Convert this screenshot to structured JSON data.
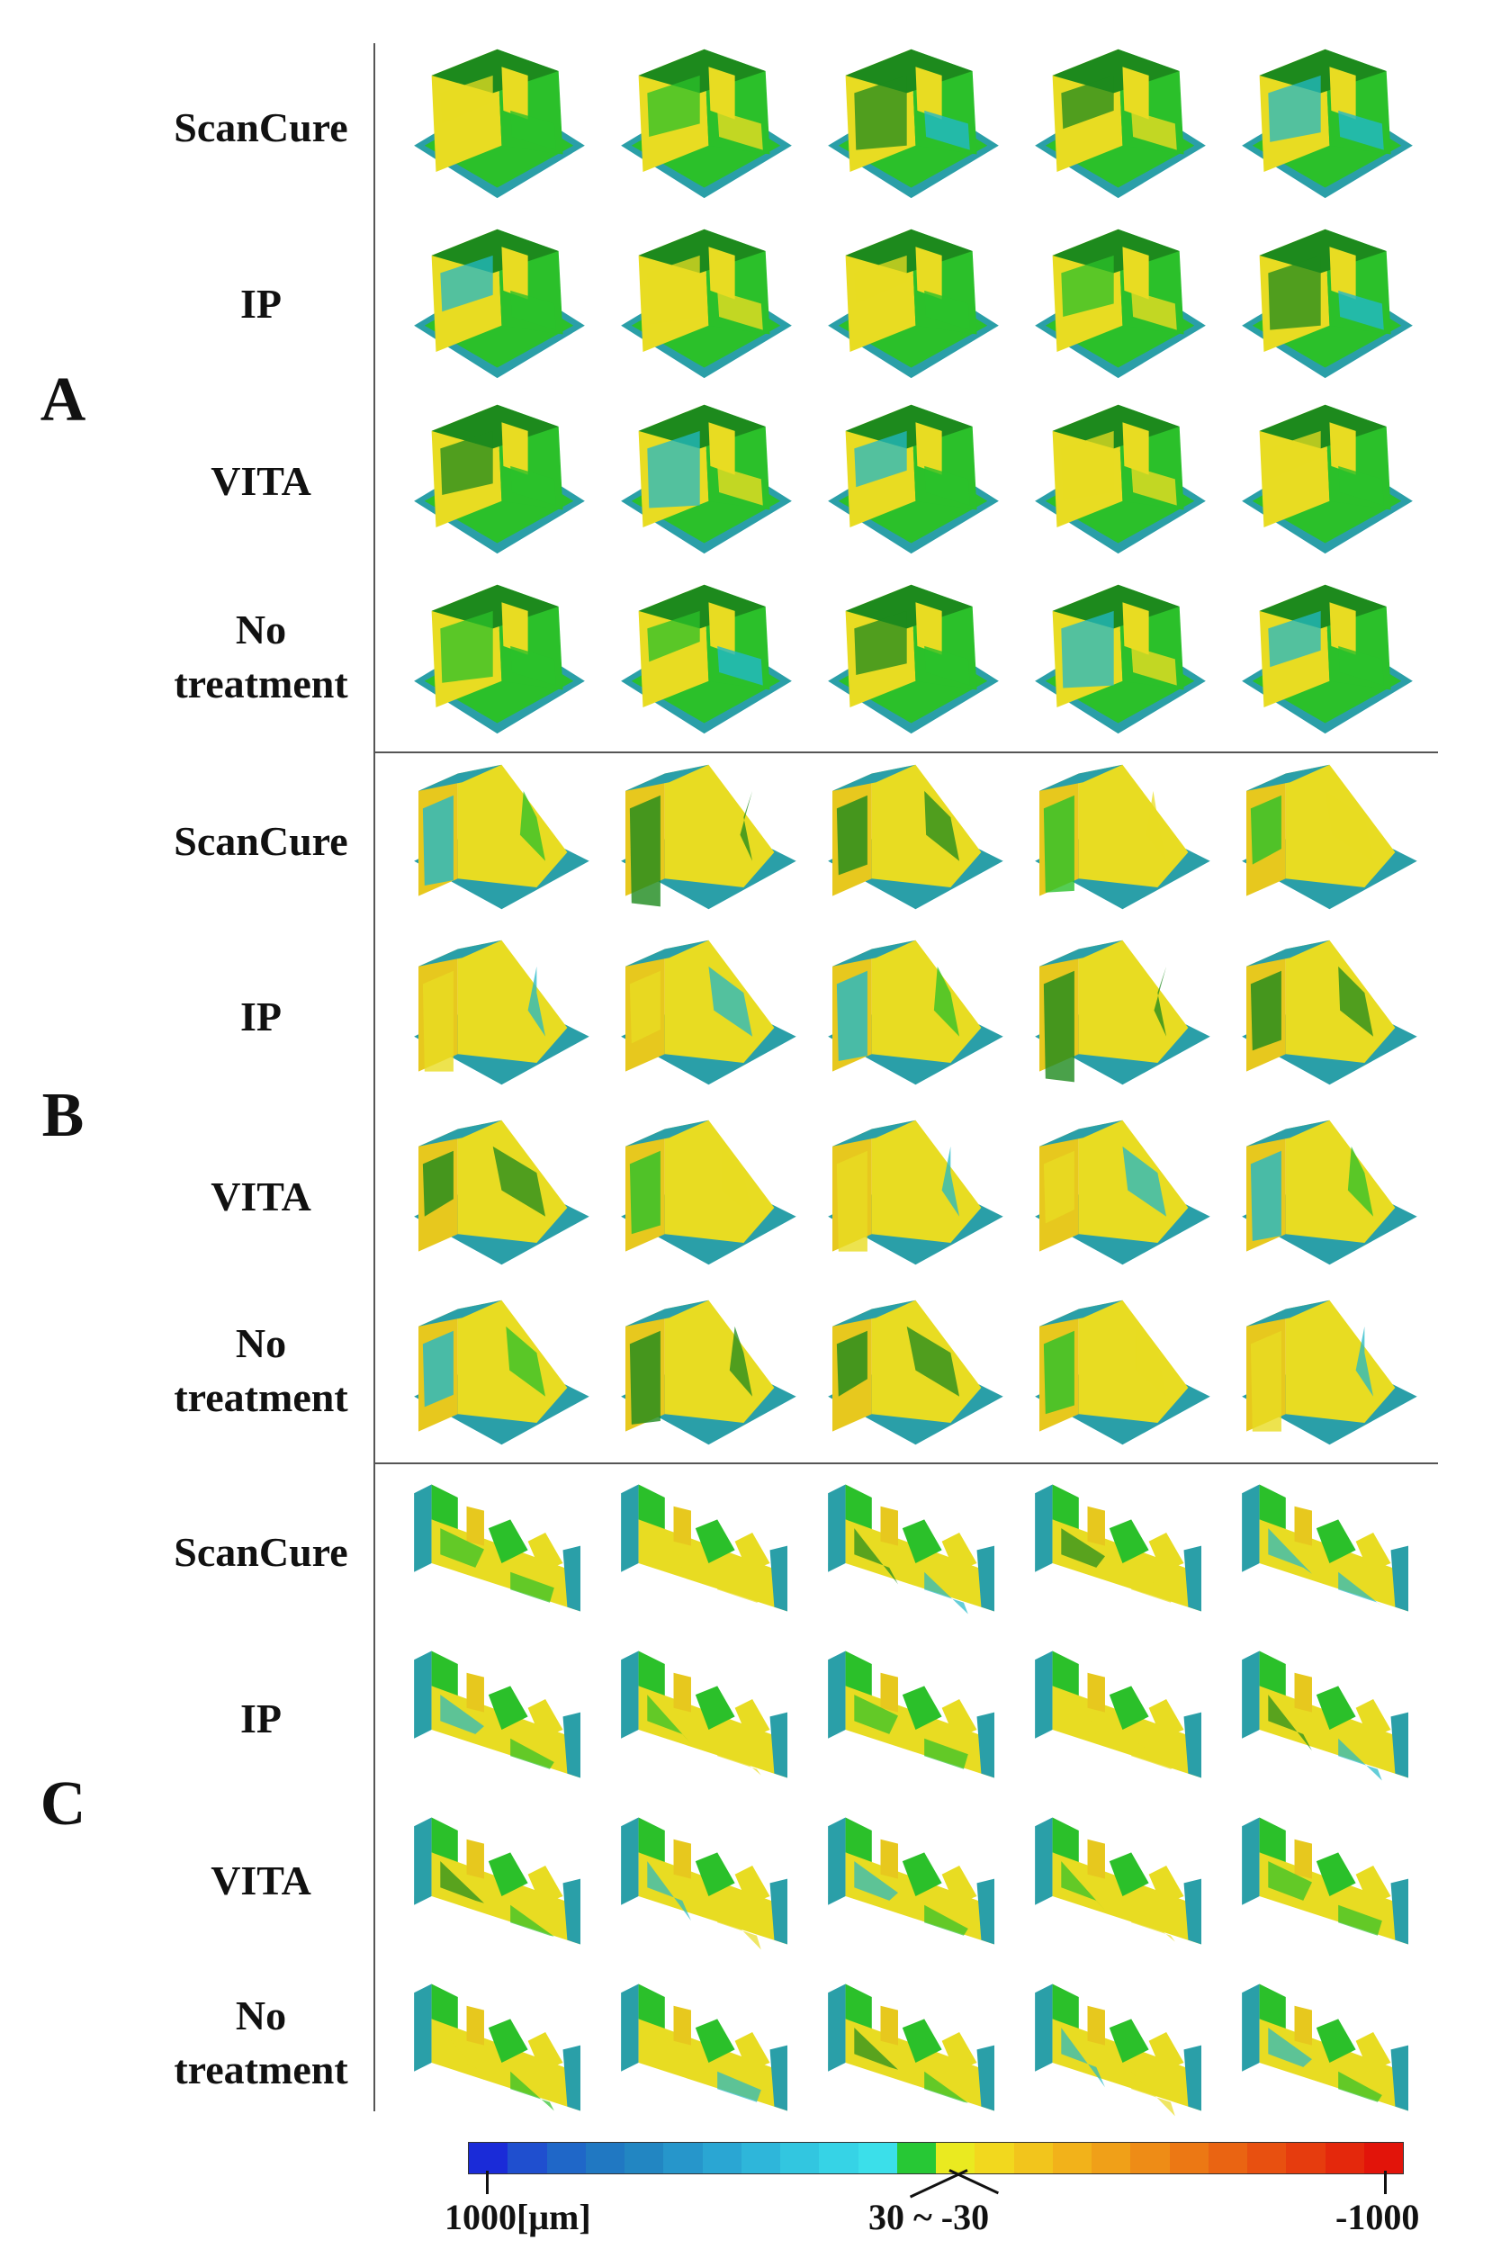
{
  "figure": {
    "groups": [
      {
        "letter": "A",
        "shape": "a",
        "rows": [
          "ScanCure",
          "IP",
          "VITA",
          "No\ntreatment"
        ]
      },
      {
        "letter": "B",
        "shape": "b",
        "rows": [
          "ScanCure",
          "IP",
          "VITA",
          "No\ntreatment"
        ]
      },
      {
        "letter": "C",
        "shape": "c",
        "rows": [
          "ScanCure",
          "IP",
          "VITA",
          "No\ntreatment"
        ]
      }
    ],
    "columns_per_row": 5
  },
  "legend": {
    "left_label": "1000[μm]",
    "center_label": "30 ~ -30",
    "right_label": "-1000",
    "colors": [
      "#1a2bd8",
      "#1f4fcf",
      "#1f67c8",
      "#2078c2",
      "#2286c2",
      "#2696cb",
      "#2aa6d3",
      "#2eb6da",
      "#32c6e0",
      "#36d3e6",
      "#3bdfea",
      "#27c835",
      "#eaea20",
      "#f2d81e",
      "#f2c51c",
      "#f2b21a",
      "#f0a018",
      "#ee8c16",
      "#ec7814",
      "#ea6412",
      "#e85010",
      "#e63c0e",
      "#e4280c",
      "#e2140a"
    ],
    "map_colors": {
      "yellow": "#e8dc22",
      "green": "#2bc02a",
      "dark_green": "#1d8a1d",
      "cyan": "#22b8c8",
      "teal_base": "#2a9fa8",
      "orange_yellow": "#e7c81e"
    }
  }
}
